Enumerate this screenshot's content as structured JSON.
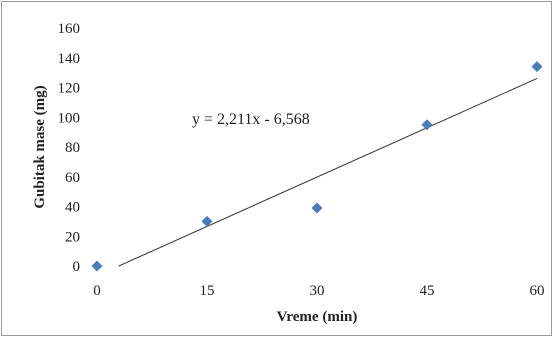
{
  "chart_data": {
    "type": "scatter",
    "title": "",
    "xlabel": "Vreme (min)",
    "ylabel": "Gubitak mase (mg)",
    "xlim": [
      0,
      60
    ],
    "ylim": [
      0,
      160
    ],
    "xticks": [
      0,
      15,
      30,
      45,
      60
    ],
    "yticks": [
      0,
      20,
      40,
      60,
      80,
      100,
      120,
      140,
      160
    ],
    "grid": false,
    "legend": "none",
    "series": [
      {
        "x": [
          0,
          15,
          30,
          45,
          60
        ],
        "y": [
          0,
          30,
          39,
          95,
          134
        ],
        "marker": "diamond",
        "color": "#4a7ebb"
      }
    ],
    "trendline": {
      "type": "linear",
      "slope": 2.211,
      "intercept": -6.568,
      "color": "#333333"
    },
    "annotations": [
      {
        "text": "y = 2,211x - 6,568"
      }
    ]
  }
}
